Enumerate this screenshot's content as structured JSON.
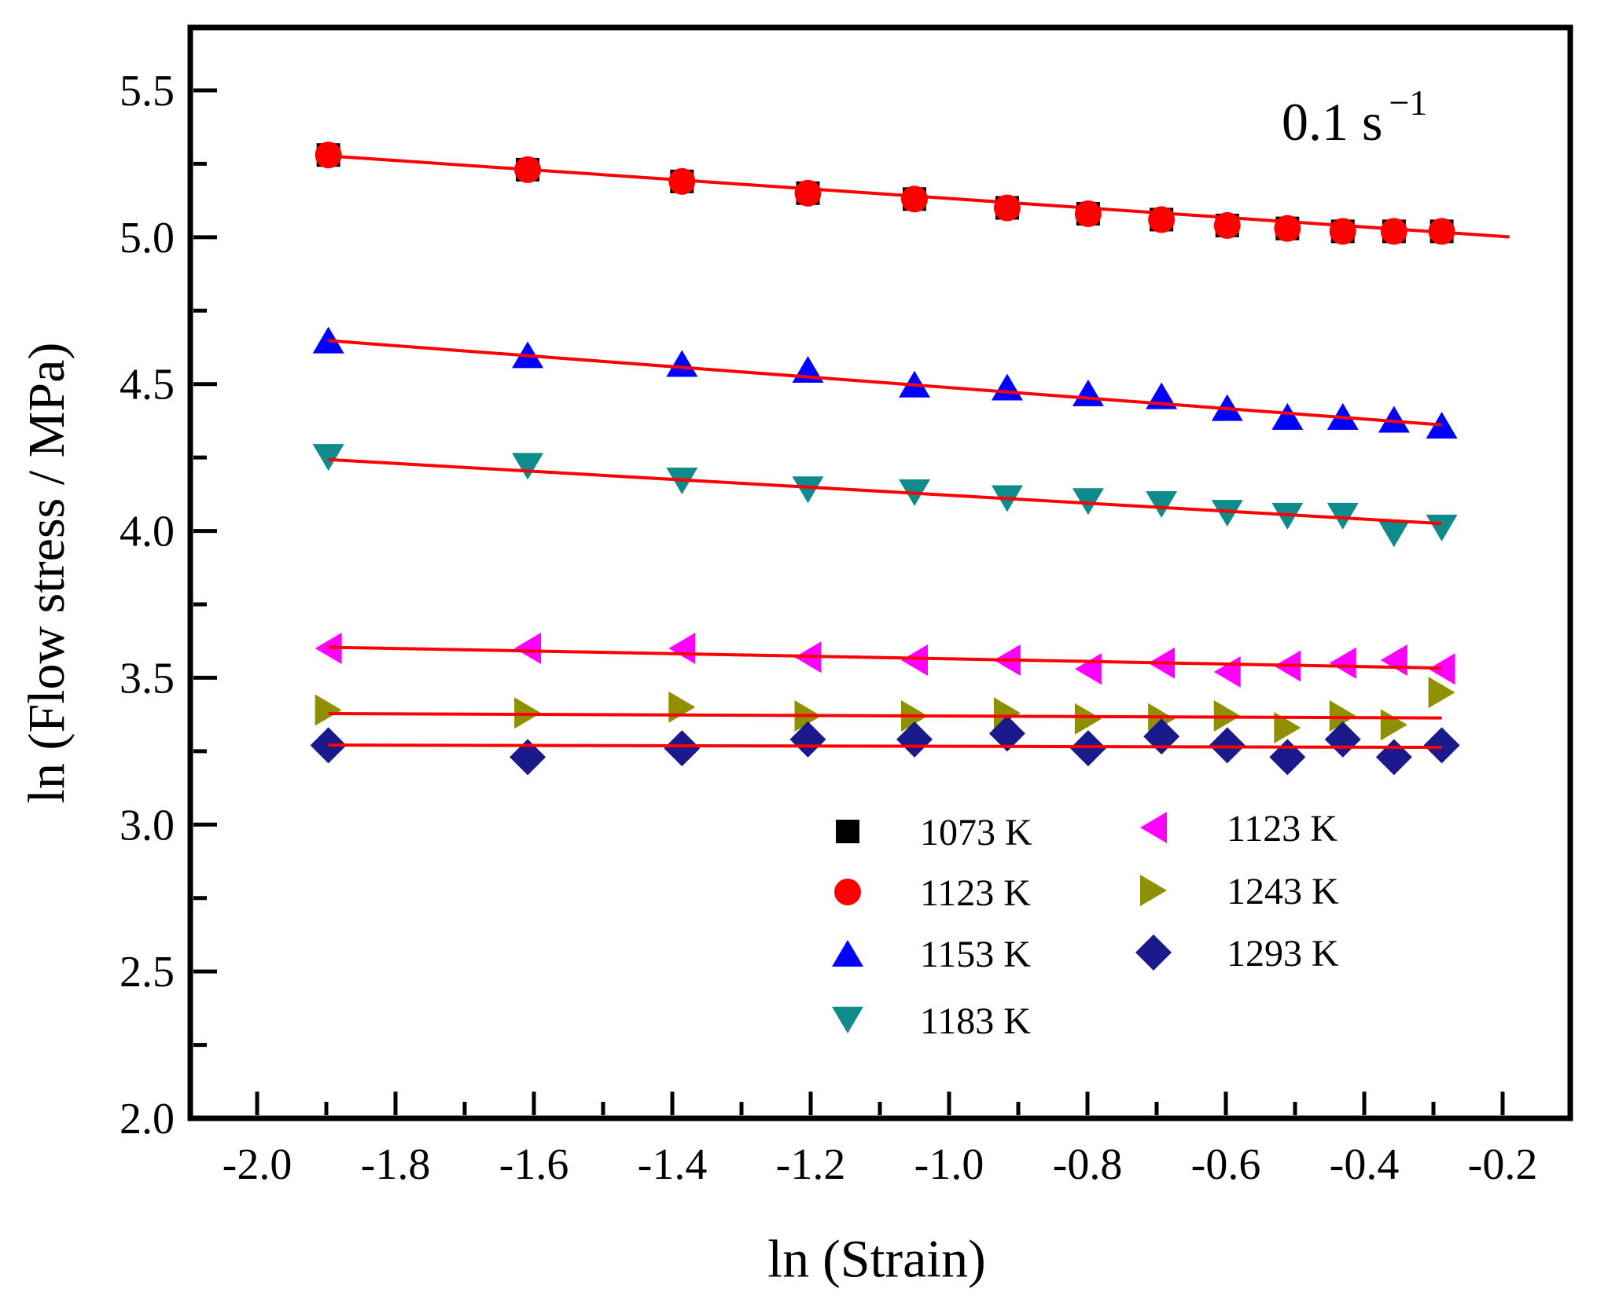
{
  "figure": {
    "annotation": {
      "text": "0.1 s",
      "superscript": "−1"
    },
    "x_axis": {
      "label": "ln (Strain)",
      "range": [
        -2.097,
        -0.103
      ],
      "tick_values": [
        -2.0,
        -1.8,
        -1.6,
        -1.4,
        -1.2,
        -1.0,
        -0.8,
        -0.6,
        -0.4,
        -0.2
      ],
      "tick_labels": [
        "-2.0",
        "-1.8",
        "-1.6",
        "-1.4",
        "-1.2",
        "-1.0",
        "-0.8",
        "-0.6",
        "-0.4",
        "-0.2"
      ],
      "minor_tick_values": [
        -1.9,
        -1.7,
        -1.5,
        -1.3,
        -1.1,
        -0.9,
        -0.7,
        -0.5,
        -0.3
      ]
    },
    "y_axis": {
      "label": "ln (Flow stress / MPa)",
      "range": [
        2.0,
        5.713
      ],
      "tick_values": [
        2.0,
        2.5,
        3.0,
        3.5,
        4.0,
        4.5,
        5.0,
        5.5
      ],
      "tick_labels": [
        "2.0",
        "2.5",
        "3.0",
        "3.5",
        "4.0",
        "4.5",
        "5.0",
        "5.5"
      ],
      "minor_tick_values": [
        2.25,
        2.75,
        3.25,
        3.75,
        4.25,
        4.75,
        5.25
      ]
    },
    "frame_color": "#000000",
    "fit_line_color": "#ff0000"
  },
  "legend": {
    "columns": [
      {
        "items": [
          {
            "label": "1073 K",
            "marker": "square",
            "color": "#000000"
          },
          {
            "label": "1123 K",
            "marker": "circle",
            "color": "#ff0000"
          },
          {
            "label": "1153 K",
            "marker": "triangle-up",
            "color": "#0000ff"
          },
          {
            "label": "1183 K",
            "marker": "triangle-down",
            "color": "#0f8b8b"
          }
        ]
      },
      {
        "items": [
          {
            "label": "1123 K",
            "marker": "triangle-left",
            "color": "#ff00ff"
          },
          {
            "label": "1243 K",
            "marker": "triangle-right",
            "color": "#8f8f00"
          },
          {
            "label": "1293 K",
            "marker": "diamond",
            "color": "#1a1a8c"
          }
        ]
      }
    ]
  },
  "chart_data": {
    "type": "scatter",
    "title": "",
    "xlabel": "ln (Strain)",
    "ylabel": "ln (Flow stress / MPa)",
    "xlim": [
      -2.097,
      -0.103
    ],
    "ylim": [
      2.0,
      5.713
    ],
    "grid": false,
    "legend_position": "inside lower center, two columns",
    "annotation": "0.1 s^-1",
    "fit_line_color": "#ff0000",
    "x": [
      -1.897,
      -1.609,
      -1.386,
      -1.204,
      -1.05,
      -0.916,
      -0.799,
      -0.693,
      -0.598,
      -0.511,
      -0.431,
      -0.357,
      -0.288
    ],
    "series": [
      {
        "name": "1073 K",
        "marker": "square",
        "color": "#000000",
        "values": [
          5.28,
          5.23,
          5.19,
          5.15,
          5.13,
          5.1,
          5.08,
          5.06,
          5.04,
          5.03,
          5.02,
          5.02,
          5.02
        ],
        "fit": {
          "x1": -1.897,
          "y1": 5.277,
          "x2": -0.19,
          "y2": 5.001
        }
      },
      {
        "name": "1123 K",
        "marker": "circle",
        "color": "#ff0000",
        "values": [
          5.28,
          5.23,
          5.19,
          5.15,
          5.13,
          5.1,
          5.08,
          5.06,
          5.04,
          5.03,
          5.02,
          5.02,
          5.02
        ],
        "fit": null
      },
      {
        "name": "1153 K",
        "marker": "triangle-up",
        "color": "#0000ff",
        "values": [
          4.65,
          4.6,
          4.57,
          4.55,
          4.5,
          4.49,
          4.47,
          4.46,
          4.42,
          4.39,
          4.39,
          4.38,
          4.36
        ],
        "fit": {
          "x1": -1.897,
          "y1": 4.648,
          "x2": -0.288,
          "y2": 4.361
        }
      },
      {
        "name": "1183 K",
        "marker": "triangle-down",
        "color": "#0f8b8b",
        "values": [
          4.25,
          4.22,
          4.17,
          4.14,
          4.13,
          4.11,
          4.1,
          4.09,
          4.06,
          4.05,
          4.05,
          3.99,
          4.01
        ],
        "fit": {
          "x1": -1.897,
          "y1": 4.243,
          "x2": -0.288,
          "y2": 4.025
        }
      },
      {
        "name": "1123 K",
        "marker": "triangle-left",
        "color": "#ff00ff",
        "values": [
          3.6,
          3.6,
          3.6,
          3.57,
          3.56,
          3.56,
          3.53,
          3.55,
          3.52,
          3.54,
          3.55,
          3.56,
          3.53
        ],
        "fit": {
          "x1": -1.897,
          "y1": 3.604,
          "x2": -0.288,
          "y2": 3.533
        }
      },
      {
        "name": "1243 K",
        "marker": "triangle-right",
        "color": "#8f8f00",
        "values": [
          3.39,
          3.38,
          3.4,
          3.37,
          3.37,
          3.38,
          3.36,
          3.36,
          3.37,
          3.33,
          3.37,
          3.34,
          3.45
        ],
        "fit": {
          "x1": -1.897,
          "y1": 3.378,
          "x2": -0.288,
          "y2": 3.363
        }
      },
      {
        "name": "1293 K",
        "marker": "diamond",
        "color": "#1a1a8c",
        "values": [
          3.27,
          3.23,
          3.26,
          3.29,
          3.29,
          3.31,
          3.26,
          3.3,
          3.27,
          3.23,
          3.29,
          3.23,
          3.27
        ],
        "fit": {
          "x1": -1.897,
          "y1": 3.271,
          "x2": -0.288,
          "y2": 3.263
        }
      }
    ]
  }
}
